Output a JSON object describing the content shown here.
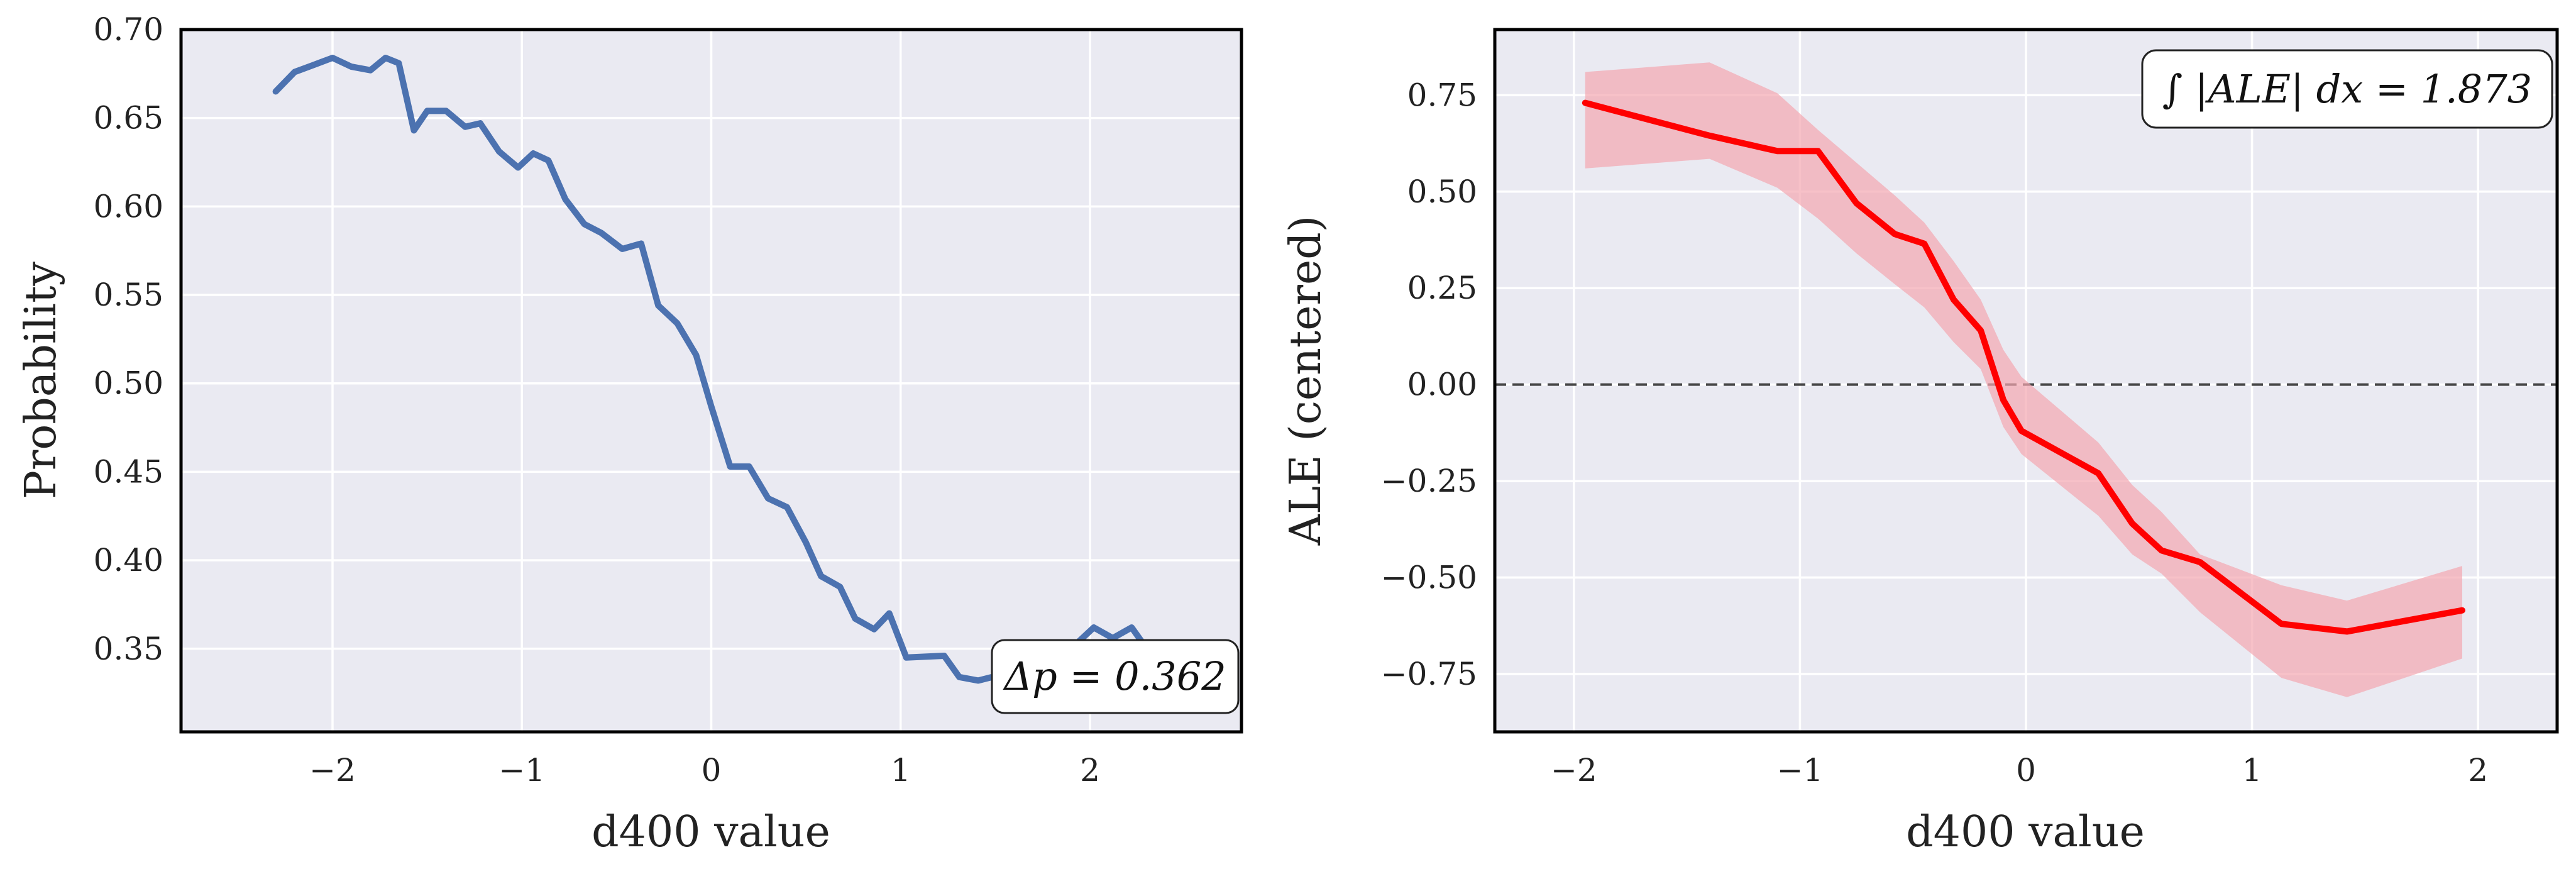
{
  "chart_data": [
    {
      "type": "line",
      "xlabel": "d400 value",
      "ylabel": "Probability",
      "xlim": [
        -2.8,
        2.8
      ],
      "ylim": [
        0.303,
        0.7
      ],
      "xticks": [
        -2,
        -1,
        0,
        1,
        2
      ],
      "xtick_labels": [
        "−2",
        "−1",
        "0",
        "1",
        "2"
      ],
      "yticks": [
        0.35,
        0.4,
        0.45,
        0.5,
        0.55,
        0.6,
        0.65,
        0.7
      ],
      "ytick_labels": [
        "0.35",
        "0.40",
        "0.45",
        "0.50",
        "0.55",
        "0.60",
        "0.65",
        "0.70"
      ],
      "grid": true,
      "series": [
        {
          "color": "#4c72b0",
          "x": [
            -2.3,
            -2.2,
            -2.1,
            -2.0,
            -1.9,
            -1.8,
            -1.72,
            -1.65,
            -1.57,
            -1.5,
            -1.4,
            -1.3,
            -1.22,
            -1.12,
            -1.02,
            -0.94,
            -0.86,
            -0.77,
            -0.67,
            -0.58,
            -0.47,
            -0.37,
            -0.28,
            -0.18,
            -0.08,
            0.0,
            0.1,
            0.2,
            0.3,
            0.4,
            0.5,
            0.58,
            0.68,
            0.76,
            0.86,
            0.94,
            1.03,
            1.23,
            1.31,
            1.41,
            1.52,
            1.62,
            1.72,
            1.82,
            1.92,
            2.02,
            2.12,
            2.22,
            2.3
          ],
          "y": [
            0.665,
            0.676,
            0.68,
            0.684,
            0.679,
            0.677,
            0.684,
            0.681,
            0.643,
            0.654,
            0.654,
            0.645,
            0.647,
            0.631,
            0.622,
            0.63,
            0.626,
            0.604,
            0.59,
            0.585,
            0.576,
            0.579,
            0.544,
            0.534,
            0.516,
            0.487,
            0.453,
            0.453,
            0.435,
            0.43,
            0.41,
            0.391,
            0.385,
            0.367,
            0.361,
            0.37,
            0.345,
            0.346,
            0.334,
            0.332,
            0.335,
            0.327,
            0.34,
            0.343,
            0.352,
            0.362,
            0.356,
            0.362,
            0.35
          ]
        }
      ],
      "annotation": "Δp = 0.362"
    },
    {
      "type": "line",
      "xlabel": "d400 value",
      "ylabel": "ALE (centered)",
      "xlim": [
        -2.35,
        2.35
      ],
      "ylim": [
        -0.9,
        0.92
      ],
      "xticks": [
        -2,
        -1,
        0,
        1,
        2
      ],
      "xtick_labels": [
        "−2",
        "−1",
        "0",
        "1",
        "2"
      ],
      "yticks": [
        -0.75,
        -0.5,
        -0.25,
        0.0,
        0.25,
        0.5,
        0.75
      ],
      "ytick_labels": [
        "−0.75",
        "−0.50",
        "−0.25",
        "0.00",
        "0.25",
        "0.50",
        "0.75"
      ],
      "grid": true,
      "reference_line": {
        "y": 0,
        "style": "dashed",
        "color": "#444444"
      },
      "series": [
        {
          "color": "#ff0000",
          "band_color": "#f4a6b0",
          "x": [
            -1.95,
            -1.4,
            -1.1,
            -0.92,
            -0.75,
            -0.58,
            -0.45,
            -0.32,
            -0.2,
            -0.1,
            -0.02,
            0.32,
            0.47,
            0.6,
            0.77,
            1.13,
            1.42,
            1.93
          ],
          "y": [
            0.73,
            0.645,
            0.605,
            0.605,
            0.47,
            0.39,
            0.365,
            0.22,
            0.14,
            -0.04,
            -0.12,
            -0.23,
            -0.36,
            -0.43,
            -0.46,
            -0.62,
            -0.64,
            -0.585
          ],
          "lower": [
            0.56,
            0.585,
            0.51,
            0.43,
            0.34,
            0.26,
            0.2,
            0.11,
            0.04,
            -0.11,
            -0.18,
            -0.34,
            -0.44,
            -0.49,
            -0.59,
            -0.76,
            -0.81,
            -0.71
          ],
          "upper": [
            0.81,
            0.835,
            0.755,
            0.66,
            0.575,
            0.49,
            0.42,
            0.32,
            0.22,
            0.09,
            0.02,
            -0.15,
            -0.26,
            -0.33,
            -0.44,
            -0.52,
            -0.56,
            -0.47
          ]
        }
      ],
      "annotation": "∫ |ALE| dx = 1.873"
    }
  ]
}
